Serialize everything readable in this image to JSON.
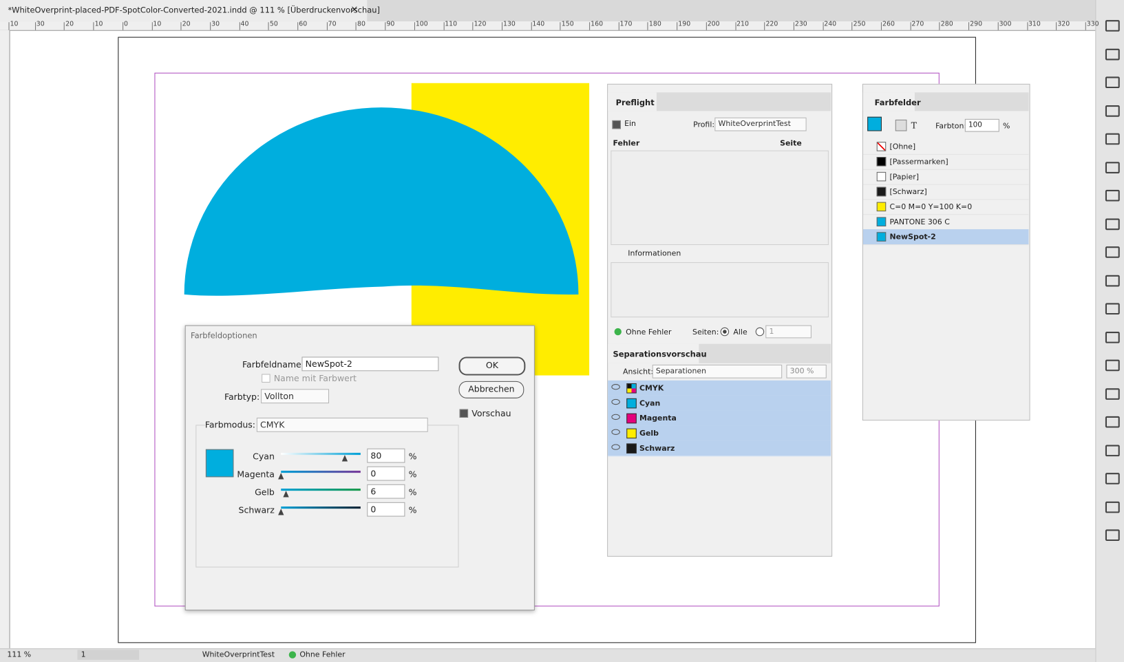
{
  "tab": {
    "title": "*WhiteOverprint-placed-PDF-SpotColor-Converted-2021.indd @ 111 % [Überdruckenvorschau]",
    "close": "×"
  },
  "ruler": {
    "labels": [
      "10",
      "30",
      "20",
      "10",
      "0",
      "10",
      "20",
      "30",
      "40",
      "50",
      "60",
      "70",
      "80",
      "90",
      "100",
      "110",
      "120",
      "130",
      "140",
      "150",
      "160",
      "170",
      "180",
      "190",
      "200",
      "210",
      "220",
      "230",
      "240",
      "250",
      "260",
      "270",
      "280",
      "290",
      "300",
      "310",
      "320",
      "330"
    ]
  },
  "dialog": {
    "title": "Farbfeldoptionen",
    "name_label": "Farbfeldname:",
    "name_value": "NewSpot-2",
    "name_with_value": "Name mit Farbwert",
    "type_label": "Farbtyp:",
    "type_value": "Vollton",
    "mode_label": "Farbmodus:",
    "mode_value": "CMYK",
    "ok": "OK",
    "cancel": "Abbrechen",
    "preview": "Vorschau",
    "percent": "%",
    "sliders": [
      {
        "name": "Cyan",
        "value": 80
      },
      {
        "name": "Magenta",
        "value": 0
      },
      {
        "name": "Gelb",
        "value": 6
      },
      {
        "name": "Schwarz",
        "value": 0
      }
    ]
  },
  "preflight": {
    "title": "Preflight",
    "on": "Ein",
    "profile_label": "Profil:",
    "profile": "WhiteOverprintTest",
    "col_errors": "Fehler",
    "col_page": "Seite",
    "info": "Informationen",
    "status": "Ohne Fehler",
    "pages_label": "Seiten:",
    "all": "Alle",
    "page": "1"
  },
  "separations": {
    "title": "Separationsvorschau",
    "view_label": "Ansicht:",
    "view": "Separationen",
    "zoom": "300 %",
    "rows": [
      "CMYK",
      "Cyan",
      "Magenta",
      "Gelb",
      "Schwarz"
    ]
  },
  "swatches": {
    "title": "Farbfelder",
    "text_icon": "T",
    "tint_label": "Farbton:",
    "tint": "100",
    "percent": "%",
    "items": [
      "[Ohne]",
      "[Passermarken]",
      "[Papier]",
      "[Schwarz]",
      "C=0 M=0 Y=100 K=0",
      "PANTONE 306 C",
      "NewSpot-2"
    ]
  },
  "status": {
    "zoom": "111 %",
    "page": "1",
    "profile": "WhiteOverprintTest",
    "errors": "Ohne Fehler"
  }
}
